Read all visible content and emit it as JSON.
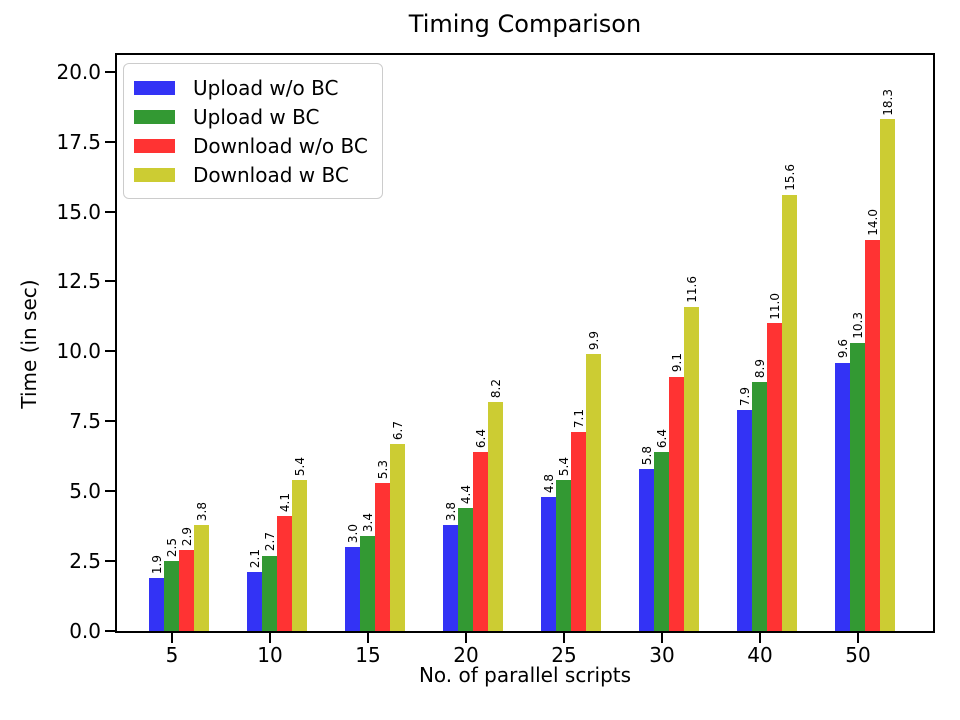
{
  "chart_data": {
    "type": "bar",
    "title": "Timing Comparison",
    "xlabel": "No. of parallel scripts",
    "ylabel": "Time (in sec)",
    "categories": [
      "5",
      "10",
      "15",
      "20",
      "25",
      "30",
      "40",
      "50"
    ],
    "series": [
      {
        "name": "Upload w/o BC",
        "color": "#3333F5",
        "values": [
          1.9,
          2.1,
          3.0,
          3.8,
          4.8,
          5.8,
          7.9,
          9.6
        ]
      },
      {
        "name": "Upload w BC",
        "color": "#339933",
        "values": [
          2.5,
          2.7,
          3.4,
          4.4,
          5.4,
          6.4,
          8.9,
          10.3
        ]
      },
      {
        "name": "Download w/o BC",
        "color": "#FF3333",
        "values": [
          2.9,
          4.1,
          5.3,
          6.4,
          7.1,
          9.1,
          11.0,
          14.0
        ]
      },
      {
        "name": "Download w BC",
        "color": "#CCCC33",
        "values": [
          3.8,
          5.4,
          6.7,
          8.2,
          9.9,
          11.6,
          15.6,
          18.3
        ]
      }
    ],
    "yticks": [
      0.0,
      2.5,
      5.0,
      7.5,
      10.0,
      12.5,
      15.0,
      17.5,
      20.0
    ],
    "ylim": [
      0,
      20.6
    ],
    "grid": false,
    "legend_position": "upper-left",
    "bar_value_labels": true,
    "value_label_decimals": 1,
    "tick_label_decimals": 1,
    "background_color": "#FFFFFF",
    "axis_color": "#000000",
    "text_color": "#000000"
  }
}
